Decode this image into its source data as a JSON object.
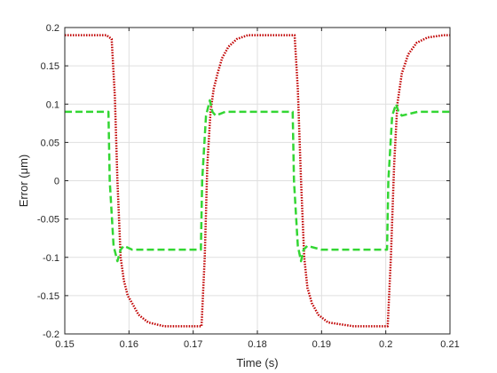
{
  "chart_data": {
    "type": "line",
    "title": "",
    "xlabel": "Time (s)",
    "ylabel": "Error (μm)",
    "xlim": [
      0.15,
      0.21
    ],
    "ylim": [
      -0.2,
      0.2
    ],
    "xticks": [
      0.15,
      0.16,
      0.17,
      0.18,
      0.19,
      0.2,
      0.21
    ],
    "xtick_labels": [
      "0.15",
      "0.16",
      "0.17",
      "0.18",
      "0.19",
      "0.2",
      "0.21"
    ],
    "yticks": [
      -0.2,
      -0.15,
      -0.1,
      -0.05,
      0,
      0.05,
      0.1,
      0.15,
      0.2
    ],
    "ytick_labels": [
      "-0.2",
      "-0.15",
      "-0.1",
      "-0.05",
      "0",
      "0.05",
      "0.1",
      "0.15",
      "0.2"
    ],
    "grid": true,
    "series": [
      {
        "style": "dotted",
        "color": "#C00000",
        "x": [
          0.15,
          0.1565,
          0.1573,
          0.1578,
          0.1582,
          0.1587,
          0.1592,
          0.1598,
          0.1605,
          0.1615,
          0.163,
          0.1655,
          0.168,
          0.1713,
          0.1718,
          0.1722,
          0.1727,
          0.1732,
          0.1738,
          0.1745,
          0.1755,
          0.1768,
          0.1785,
          0.181,
          0.1858,
          0.1863,
          0.1868,
          0.1873,
          0.1878,
          0.1885,
          0.1895,
          0.191,
          0.195,
          0.2003,
          0.2008,
          0.2013,
          0.2018,
          0.2025,
          0.2035,
          0.2048,
          0.2065,
          0.209,
          0.21
        ],
        "y": [
          0.19,
          0.19,
          0.185,
          0.11,
          0.0,
          -0.1,
          -0.13,
          -0.15,
          -0.16,
          -0.175,
          -0.185,
          -0.19,
          -0.19,
          -0.19,
          -0.1,
          0.02,
          0.09,
          0.12,
          0.14,
          0.16,
          0.175,
          0.185,
          0.19,
          0.19,
          0.19,
          0.12,
          0.0,
          -0.1,
          -0.14,
          -0.16,
          -0.175,
          -0.185,
          -0.19,
          -0.19,
          -0.1,
          0.02,
          0.1,
          0.14,
          0.165,
          0.18,
          0.187,
          0.19,
          0.19
        ]
      },
      {
        "style": "dashed",
        "color": "#33D633",
        "x": [
          0.15,
          0.1568,
          0.157,
          0.1576,
          0.1582,
          0.1587,
          0.1592,
          0.1605,
          0.165,
          0.1712,
          0.1714,
          0.172,
          0.1726,
          0.173,
          0.1735,
          0.175,
          0.18,
          0.1855,
          0.1857,
          0.1863,
          0.1868,
          0.1872,
          0.1878,
          0.19,
          0.2002,
          0.2004,
          0.201,
          0.2016,
          0.202,
          0.2025,
          0.205,
          0.21
        ],
        "y": [
          0.09,
          0.09,
          0.0,
          -0.085,
          -0.105,
          -0.09,
          -0.085,
          -0.09,
          -0.09,
          -0.09,
          0.0,
          0.085,
          0.105,
          0.09,
          0.085,
          0.09,
          0.09,
          0.09,
          0.0,
          -0.085,
          -0.105,
          -0.09,
          -0.085,
          -0.09,
          -0.09,
          0.0,
          0.085,
          0.1,
          0.09,
          0.085,
          0.09,
          0.09
        ]
      }
    ]
  }
}
